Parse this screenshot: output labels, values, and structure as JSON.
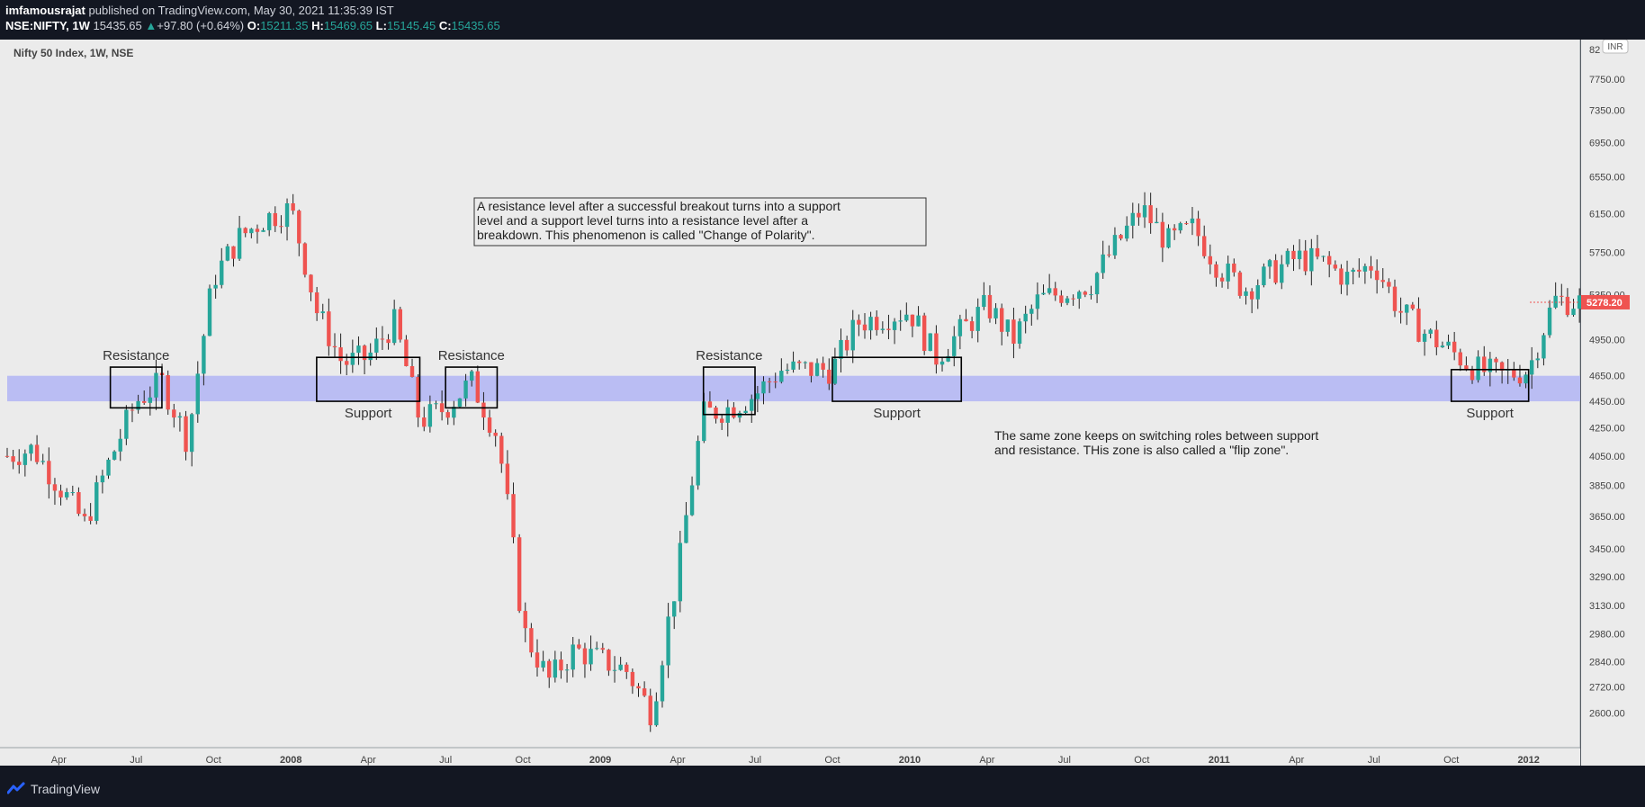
{
  "header": {
    "author": "imfamousrajat",
    "published_text": "published on TradingView.com, May 30, 2021 11:35:39 IST",
    "symbol": "NSE:NIFTY, 1W",
    "last": "15435.65",
    "change": "+97.80 (+0.64%)",
    "open_label": "O:",
    "open": "15211.35",
    "high_label": "H:",
    "high": "15469.65",
    "low_label": "L:",
    "low": "15145.45",
    "close_label": "C:",
    "close": "15435.65"
  },
  "chart_title": "Nifty 50 Index, 1W, NSE",
  "currency": "INR",
  "last_price_label": "5278.20",
  "footer": {
    "brand": "TradingView"
  },
  "colors": {
    "up": "#26a69a",
    "down": "#ef5350",
    "zone": "#b2b5f4",
    "background": "#ebebeb",
    "frame": "#131722",
    "price_tag": "#ef5350"
  },
  "chart_data": {
    "type": "candlestick",
    "title": "Nifty 50 Index, 1W, NSE",
    "y_scale": "log",
    "ylim": [
      2450,
      8300
    ],
    "y_ticks": [
      2600,
      2720,
      2840,
      2980,
      3130,
      3290,
      3450,
      3650,
      3850,
      4050,
      4250,
      4450,
      4650,
      4950,
      5350,
      5750,
      6150,
      6550,
      6950,
      7350,
      7750
    ],
    "y_tick_labels": [
      "2600.00",
      "2720.00",
      "2840.00",
      "2980.00",
      "3130.00",
      "3290.00",
      "3450.00",
      "3650.00",
      "3850.00",
      "4050.00",
      "4250.00",
      "4450.00",
      "4650.00",
      "4950.00",
      "5350.00",
      "5750.00",
      "6150.00",
      "6550.00",
      "6950.00",
      "7350.00",
      "7750.00"
    ],
    "y_top_tick_label": "82",
    "x_labels": [
      "Apr",
      "Jul",
      "Oct",
      "2008",
      "Apr",
      "Jul",
      "Oct",
      "2009",
      "Apr",
      "Jul",
      "Oct",
      "2010",
      "Apr",
      "Jul",
      "Oct",
      "2011",
      "Apr",
      "Jul",
      "Oct",
      "2012"
    ],
    "x_label_dates": [
      "2007-04",
      "2007-07",
      "2007-10",
      "2008-01",
      "2008-04",
      "2008-07",
      "2008-10",
      "2009-01",
      "2009-04",
      "2009-07",
      "2009-10",
      "2010-01",
      "2010-04",
      "2010-07",
      "2010-10",
      "2011-01",
      "2011-04",
      "2011-07",
      "2011-10",
      "2012-01"
    ],
    "x_range": [
      "2007-02",
      "2012-03"
    ],
    "last_value": 5278.2,
    "path_dates": [
      "2007-02",
      "2007-03",
      "2007-05",
      "2007-07",
      "2007-08",
      "2007-09",
      "2007-10",
      "2007-11",
      "2007-12",
      "2008-01",
      "2008-02",
      "2008-03",
      "2008-04",
      "2008-05",
      "2008-06",
      "2008-07",
      "2008-08",
      "2008-09",
      "2008-10",
      "2008-11",
      "2008-12",
      "2009-02",
      "2009-03",
      "2009-04",
      "2009-05",
      "2009-06",
      "2009-07",
      "2009-08",
      "2009-10",
      "2009-11",
      "2010-01",
      "2010-02",
      "2010-04",
      "2010-05",
      "2010-06",
      "2010-08",
      "2010-10",
      "2010-11",
      "2010-12",
      "2011-01",
      "2011-02",
      "2011-04",
      "2011-05",
      "2011-06",
      "2011-07",
      "2011-08",
      "2011-09",
      "2011-10",
      "2011-11",
      "2011-12",
      "2012-01",
      "2012-02",
      "2012-03"
    ],
    "path_values": [
      4050,
      4100,
      3600,
      4450,
      4600,
      4150,
      5500,
      5900,
      6100,
      6200,
      5200,
      4750,
      4800,
      5100,
      4300,
      4400,
      4600,
      4200,
      3000,
      2750,
      2900,
      2800,
      2600,
      3300,
      4350,
      4400,
      4500,
      4700,
      4700,
      5100,
      5200,
      4800,
      5250,
      4950,
      5300,
      5450,
      6200,
      5850,
      6000,
      5600,
      5400,
      5700,
      5650,
      5500,
      5650,
      5200,
      5000,
      4850,
      4700,
      4650,
      4700,
      5300,
      5278
    ],
    "zone": [
      4450,
      4650
    ],
    "annotation_text": [
      "A resistance level after a successful breakout turns into a support",
      "level and a support level turns into a resistance level after a",
      "breakdown. This phenomenon is called \"Change of Polarity\"."
    ],
    "flip_zone_text": [
      "The same zone keeps on switching roles between support",
      "and resistance. THis zone is also called a \"flip zone\"."
    ],
    "boxes": [
      {
        "label": "Resistance",
        "label_pos": "above",
        "from": "2007-06",
        "to": "2007-08",
        "low": 4400,
        "high": 4720
      },
      {
        "label": "Support",
        "label_pos": "below",
        "from": "2008-02",
        "to": "2008-06",
        "low": 4450,
        "high": 4800
      },
      {
        "label": "Resistance",
        "label_pos": "above",
        "from": "2008-07",
        "to": "2008-09",
        "low": 4400,
        "high": 4720
      },
      {
        "label": "Resistance",
        "label_pos": "above",
        "from": "2009-05",
        "to": "2009-07",
        "low": 4350,
        "high": 4720
      },
      {
        "label": "Support",
        "label_pos": "below",
        "from": "2009-10",
        "to": "2010-03",
        "low": 4450,
        "high": 4800
      },
      {
        "label": "Support",
        "label_pos": "below",
        "from": "2011-10",
        "to": "2012-01",
        "low": 4450,
        "high": 4700
      }
    ]
  }
}
